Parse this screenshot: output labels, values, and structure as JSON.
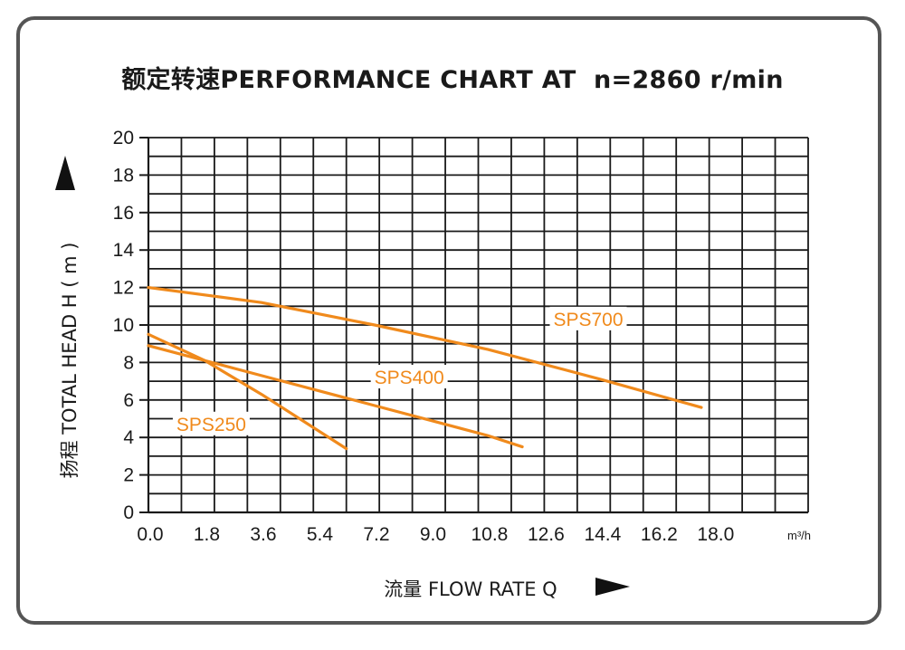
{
  "chart_data": {
    "type": "line",
    "title": "额定转速PERFORMANCE CHART AT  n=2860 r/min",
    "xlabel": "流量 FLOW RATE  Q",
    "ylabel": "扬程 TOTAL HEAD  H ( m )",
    "x_unit": "m³/h",
    "xlim": [
      0,
      21
    ],
    "ylim": [
      0,
      20
    ],
    "x_ticks": [
      "0.0",
      "1.8",
      "3.6",
      "5.4",
      "7.2",
      "9.0",
      "10.8",
      "12.6",
      "14.4",
      "16.2",
      "18.0"
    ],
    "x_tick_values": [
      0,
      1.8,
      3.6,
      5.4,
      7.2,
      9.0,
      10.8,
      12.6,
      14.4,
      16.2,
      18.0
    ],
    "y_ticks": [
      "0",
      "2",
      "4",
      "6",
      "8",
      "10",
      "12",
      "14",
      "16",
      "18",
      "20"
    ],
    "y_tick_values": [
      0,
      2,
      4,
      6,
      8,
      10,
      12,
      14,
      16,
      18,
      20
    ],
    "grid": true,
    "line_color": "#f08a1c",
    "series": [
      {
        "name": "SPS250",
        "x": [
          0.0,
          1.8,
          3.6,
          6.3
        ],
        "y": [
          9.5,
          8.1,
          6.3,
          3.4
        ]
      },
      {
        "name": "SPS400",
        "x": [
          0.0,
          3.6,
          7.2,
          10.8,
          11.9
        ],
        "y": [
          8.9,
          7.3,
          5.7,
          4.1,
          3.5
        ]
      },
      {
        "name": "SPS700",
        "x": [
          0.0,
          3.6,
          7.2,
          10.8,
          14.4,
          17.6
        ],
        "y": [
          12.0,
          11.2,
          10.0,
          8.7,
          7.1,
          5.6
        ]
      }
    ]
  }
}
